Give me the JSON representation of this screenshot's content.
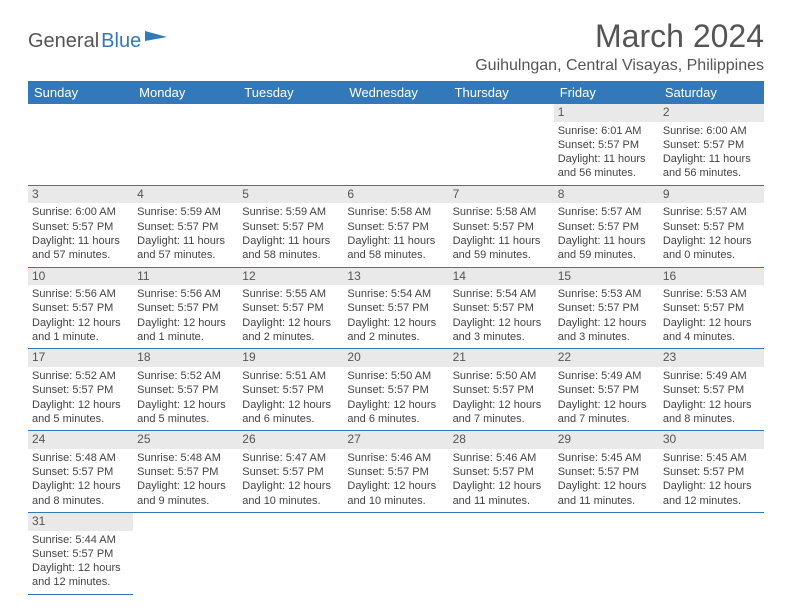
{
  "logo": {
    "general": "General",
    "blue": "Blue"
  },
  "header": {
    "title": "March 2024",
    "location": "Guihulngan, Central Visayas, Philippines"
  },
  "weekdays": [
    "Sunday",
    "Monday",
    "Tuesday",
    "Wednesday",
    "Thursday",
    "Friday",
    "Saturday"
  ],
  "colors": {
    "header_bg": "#3378b8",
    "header_text": "#ffffff",
    "daynum_bg": "#e9e9e9",
    "text": "#555555",
    "cell_border": "#3378b8"
  },
  "weeks": [
    [
      {
        "day": "",
        "sunrise": "",
        "sunset": "",
        "daylight1": "",
        "daylight2": ""
      },
      {
        "day": "",
        "sunrise": "",
        "sunset": "",
        "daylight1": "",
        "daylight2": ""
      },
      {
        "day": "",
        "sunrise": "",
        "sunset": "",
        "daylight1": "",
        "daylight2": ""
      },
      {
        "day": "",
        "sunrise": "",
        "sunset": "",
        "daylight1": "",
        "daylight2": ""
      },
      {
        "day": "",
        "sunrise": "",
        "sunset": "",
        "daylight1": "",
        "daylight2": ""
      },
      {
        "day": "1",
        "sunrise": "Sunrise: 6:01 AM",
        "sunset": "Sunset: 5:57 PM",
        "daylight1": "Daylight: 11 hours",
        "daylight2": "and 56 minutes."
      },
      {
        "day": "2",
        "sunrise": "Sunrise: 6:00 AM",
        "sunset": "Sunset: 5:57 PM",
        "daylight1": "Daylight: 11 hours",
        "daylight2": "and 56 minutes."
      }
    ],
    [
      {
        "day": "3",
        "sunrise": "Sunrise: 6:00 AM",
        "sunset": "Sunset: 5:57 PM",
        "daylight1": "Daylight: 11 hours",
        "daylight2": "and 57 minutes."
      },
      {
        "day": "4",
        "sunrise": "Sunrise: 5:59 AM",
        "sunset": "Sunset: 5:57 PM",
        "daylight1": "Daylight: 11 hours",
        "daylight2": "and 57 minutes."
      },
      {
        "day": "5",
        "sunrise": "Sunrise: 5:59 AM",
        "sunset": "Sunset: 5:57 PM",
        "daylight1": "Daylight: 11 hours",
        "daylight2": "and 58 minutes."
      },
      {
        "day": "6",
        "sunrise": "Sunrise: 5:58 AM",
        "sunset": "Sunset: 5:57 PM",
        "daylight1": "Daylight: 11 hours",
        "daylight2": "and 58 minutes."
      },
      {
        "day": "7",
        "sunrise": "Sunrise: 5:58 AM",
        "sunset": "Sunset: 5:57 PM",
        "daylight1": "Daylight: 11 hours",
        "daylight2": "and 59 minutes."
      },
      {
        "day": "8",
        "sunrise": "Sunrise: 5:57 AM",
        "sunset": "Sunset: 5:57 PM",
        "daylight1": "Daylight: 11 hours",
        "daylight2": "and 59 minutes."
      },
      {
        "day": "9",
        "sunrise": "Sunrise: 5:57 AM",
        "sunset": "Sunset: 5:57 PM",
        "daylight1": "Daylight: 12 hours",
        "daylight2": "and 0 minutes."
      }
    ],
    [
      {
        "day": "10",
        "sunrise": "Sunrise: 5:56 AM",
        "sunset": "Sunset: 5:57 PM",
        "daylight1": "Daylight: 12 hours",
        "daylight2": "and 1 minute."
      },
      {
        "day": "11",
        "sunrise": "Sunrise: 5:56 AM",
        "sunset": "Sunset: 5:57 PM",
        "daylight1": "Daylight: 12 hours",
        "daylight2": "and 1 minute."
      },
      {
        "day": "12",
        "sunrise": "Sunrise: 5:55 AM",
        "sunset": "Sunset: 5:57 PM",
        "daylight1": "Daylight: 12 hours",
        "daylight2": "and 2 minutes."
      },
      {
        "day": "13",
        "sunrise": "Sunrise: 5:54 AM",
        "sunset": "Sunset: 5:57 PM",
        "daylight1": "Daylight: 12 hours",
        "daylight2": "and 2 minutes."
      },
      {
        "day": "14",
        "sunrise": "Sunrise: 5:54 AM",
        "sunset": "Sunset: 5:57 PM",
        "daylight1": "Daylight: 12 hours",
        "daylight2": "and 3 minutes."
      },
      {
        "day": "15",
        "sunrise": "Sunrise: 5:53 AM",
        "sunset": "Sunset: 5:57 PM",
        "daylight1": "Daylight: 12 hours",
        "daylight2": "and 3 minutes."
      },
      {
        "day": "16",
        "sunrise": "Sunrise: 5:53 AM",
        "sunset": "Sunset: 5:57 PM",
        "daylight1": "Daylight: 12 hours",
        "daylight2": "and 4 minutes."
      }
    ],
    [
      {
        "day": "17",
        "sunrise": "Sunrise: 5:52 AM",
        "sunset": "Sunset: 5:57 PM",
        "daylight1": "Daylight: 12 hours",
        "daylight2": "and 5 minutes."
      },
      {
        "day": "18",
        "sunrise": "Sunrise: 5:52 AM",
        "sunset": "Sunset: 5:57 PM",
        "daylight1": "Daylight: 12 hours",
        "daylight2": "and 5 minutes."
      },
      {
        "day": "19",
        "sunrise": "Sunrise: 5:51 AM",
        "sunset": "Sunset: 5:57 PM",
        "daylight1": "Daylight: 12 hours",
        "daylight2": "and 6 minutes."
      },
      {
        "day": "20",
        "sunrise": "Sunrise: 5:50 AM",
        "sunset": "Sunset: 5:57 PM",
        "daylight1": "Daylight: 12 hours",
        "daylight2": "and 6 minutes."
      },
      {
        "day": "21",
        "sunrise": "Sunrise: 5:50 AM",
        "sunset": "Sunset: 5:57 PM",
        "daylight1": "Daylight: 12 hours",
        "daylight2": "and 7 minutes."
      },
      {
        "day": "22",
        "sunrise": "Sunrise: 5:49 AM",
        "sunset": "Sunset: 5:57 PM",
        "daylight1": "Daylight: 12 hours",
        "daylight2": "and 7 minutes."
      },
      {
        "day": "23",
        "sunrise": "Sunrise: 5:49 AM",
        "sunset": "Sunset: 5:57 PM",
        "daylight1": "Daylight: 12 hours",
        "daylight2": "and 8 minutes."
      }
    ],
    [
      {
        "day": "24",
        "sunrise": "Sunrise: 5:48 AM",
        "sunset": "Sunset: 5:57 PM",
        "daylight1": "Daylight: 12 hours",
        "daylight2": "and 8 minutes."
      },
      {
        "day": "25",
        "sunrise": "Sunrise: 5:48 AM",
        "sunset": "Sunset: 5:57 PM",
        "daylight1": "Daylight: 12 hours",
        "daylight2": "and 9 minutes."
      },
      {
        "day": "26",
        "sunrise": "Sunrise: 5:47 AM",
        "sunset": "Sunset: 5:57 PM",
        "daylight1": "Daylight: 12 hours",
        "daylight2": "and 10 minutes."
      },
      {
        "day": "27",
        "sunrise": "Sunrise: 5:46 AM",
        "sunset": "Sunset: 5:57 PM",
        "daylight1": "Daylight: 12 hours",
        "daylight2": "and 10 minutes."
      },
      {
        "day": "28",
        "sunrise": "Sunrise: 5:46 AM",
        "sunset": "Sunset: 5:57 PM",
        "daylight1": "Daylight: 12 hours",
        "daylight2": "and 11 minutes."
      },
      {
        "day": "29",
        "sunrise": "Sunrise: 5:45 AM",
        "sunset": "Sunset: 5:57 PM",
        "daylight1": "Daylight: 12 hours",
        "daylight2": "and 11 minutes."
      },
      {
        "day": "30",
        "sunrise": "Sunrise: 5:45 AM",
        "sunset": "Sunset: 5:57 PM",
        "daylight1": "Daylight: 12 hours",
        "daylight2": "and 12 minutes."
      }
    ],
    [
      {
        "day": "31",
        "sunrise": "Sunrise: 5:44 AM",
        "sunset": "Sunset: 5:57 PM",
        "daylight1": "Daylight: 12 hours",
        "daylight2": "and 12 minutes."
      },
      {
        "day": "",
        "sunrise": "",
        "sunset": "",
        "daylight1": "",
        "daylight2": ""
      },
      {
        "day": "",
        "sunrise": "",
        "sunset": "",
        "daylight1": "",
        "daylight2": ""
      },
      {
        "day": "",
        "sunrise": "",
        "sunset": "",
        "daylight1": "",
        "daylight2": ""
      },
      {
        "day": "",
        "sunrise": "",
        "sunset": "",
        "daylight1": "",
        "daylight2": ""
      },
      {
        "day": "",
        "sunrise": "",
        "sunset": "",
        "daylight1": "",
        "daylight2": ""
      },
      {
        "day": "",
        "sunrise": "",
        "sunset": "",
        "daylight1": "",
        "daylight2": ""
      }
    ]
  ]
}
